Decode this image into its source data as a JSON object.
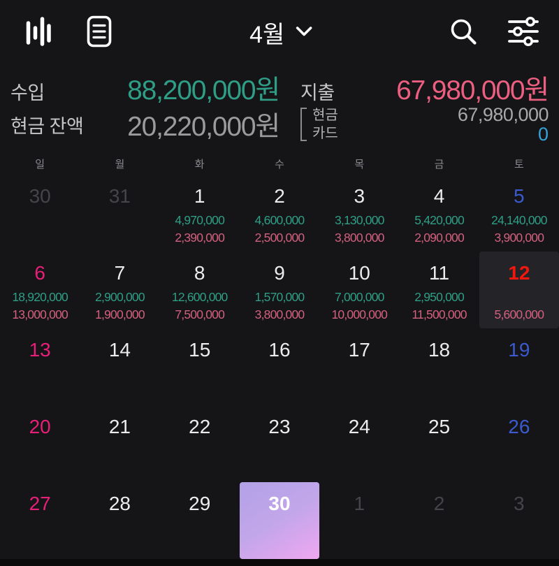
{
  "topbar": {
    "month_label": "4월"
  },
  "summary": {
    "income_label": "수입",
    "income_value": "88,200,000원",
    "expense_label": "지출",
    "expense_value": "67,980,000원",
    "cash_balance_label": "현금 잔액",
    "cash_balance_value": "20,220,000원",
    "cash_label": "현금",
    "card_label": "카드",
    "cash_expense_value": "67,980,000",
    "card_expense_value": "0"
  },
  "calendar": {
    "weekday_headers": [
      "일",
      "월",
      "화",
      "수",
      "목",
      "금",
      "토"
    ],
    "weeks": [
      [
        {
          "date": "30",
          "type": "prev"
        },
        {
          "date": "31",
          "type": "prev"
        },
        {
          "date": "1",
          "type": "normal",
          "income": "4,970,000",
          "expense": "2,390,000"
        },
        {
          "date": "2",
          "type": "normal",
          "income": "4,600,000",
          "expense": "2,500,000"
        },
        {
          "date": "3",
          "type": "normal",
          "income": "3,130,000",
          "expense": "3,800,000"
        },
        {
          "date": "4",
          "type": "normal",
          "income": "5,420,000",
          "expense": "2,090,000"
        },
        {
          "date": "5",
          "type": "sat",
          "income": "24,140,000",
          "expense": "3,900,000"
        }
      ],
      [
        {
          "date": "6",
          "type": "sun",
          "income": "18,920,000",
          "expense": "13,000,000"
        },
        {
          "date": "7",
          "type": "normal",
          "income": "2,900,000",
          "expense": "1,900,000"
        },
        {
          "date": "8",
          "type": "normal",
          "income": "12,600,000",
          "expense": "7,500,000"
        },
        {
          "date": "9",
          "type": "normal",
          "income": "1,570,000",
          "expense": "3,800,000"
        },
        {
          "date": "10",
          "type": "normal",
          "income": "7,000,000",
          "expense": "10,000,000"
        },
        {
          "date": "11",
          "type": "normal",
          "income": "2,950,000",
          "expense": "11,500,000"
        },
        {
          "date": "12",
          "type": "today",
          "expense": "5,600,000"
        }
      ],
      [
        {
          "date": "13",
          "type": "sun"
        },
        {
          "date": "14",
          "type": "normal"
        },
        {
          "date": "15",
          "type": "normal"
        },
        {
          "date": "16",
          "type": "normal"
        },
        {
          "date": "17",
          "type": "normal"
        },
        {
          "date": "18",
          "type": "normal"
        },
        {
          "date": "19",
          "type": "sat"
        }
      ],
      [
        {
          "date": "20",
          "type": "sun"
        },
        {
          "date": "21",
          "type": "normal"
        },
        {
          "date": "22",
          "type": "normal"
        },
        {
          "date": "23",
          "type": "normal"
        },
        {
          "date": "24",
          "type": "normal"
        },
        {
          "date": "25",
          "type": "normal"
        },
        {
          "date": "26",
          "type": "sat"
        }
      ],
      [
        {
          "date": "27",
          "type": "sun"
        },
        {
          "date": "28",
          "type": "normal"
        },
        {
          "date": "29",
          "type": "normal"
        },
        {
          "date": "30",
          "type": "selected"
        },
        {
          "date": "1",
          "type": "next"
        },
        {
          "date": "2",
          "type": "next"
        },
        {
          "date": "3",
          "type": "next"
        }
      ]
    ]
  },
  "colors": {
    "background": "#151518",
    "income_green": "#2f9e86",
    "expense_pink": "#ec5f80",
    "expense_amount_pink": "#d4607f",
    "sunday_pink": "#e81f78",
    "saturday_blue": "#3a5ace",
    "today_red": "#f2170c",
    "card_blue": "#35a3d8",
    "muted_gray": "#9b9b9b",
    "selected_gradient_start": "#b2a1e6",
    "selected_gradient_end": "#efa7f0"
  }
}
